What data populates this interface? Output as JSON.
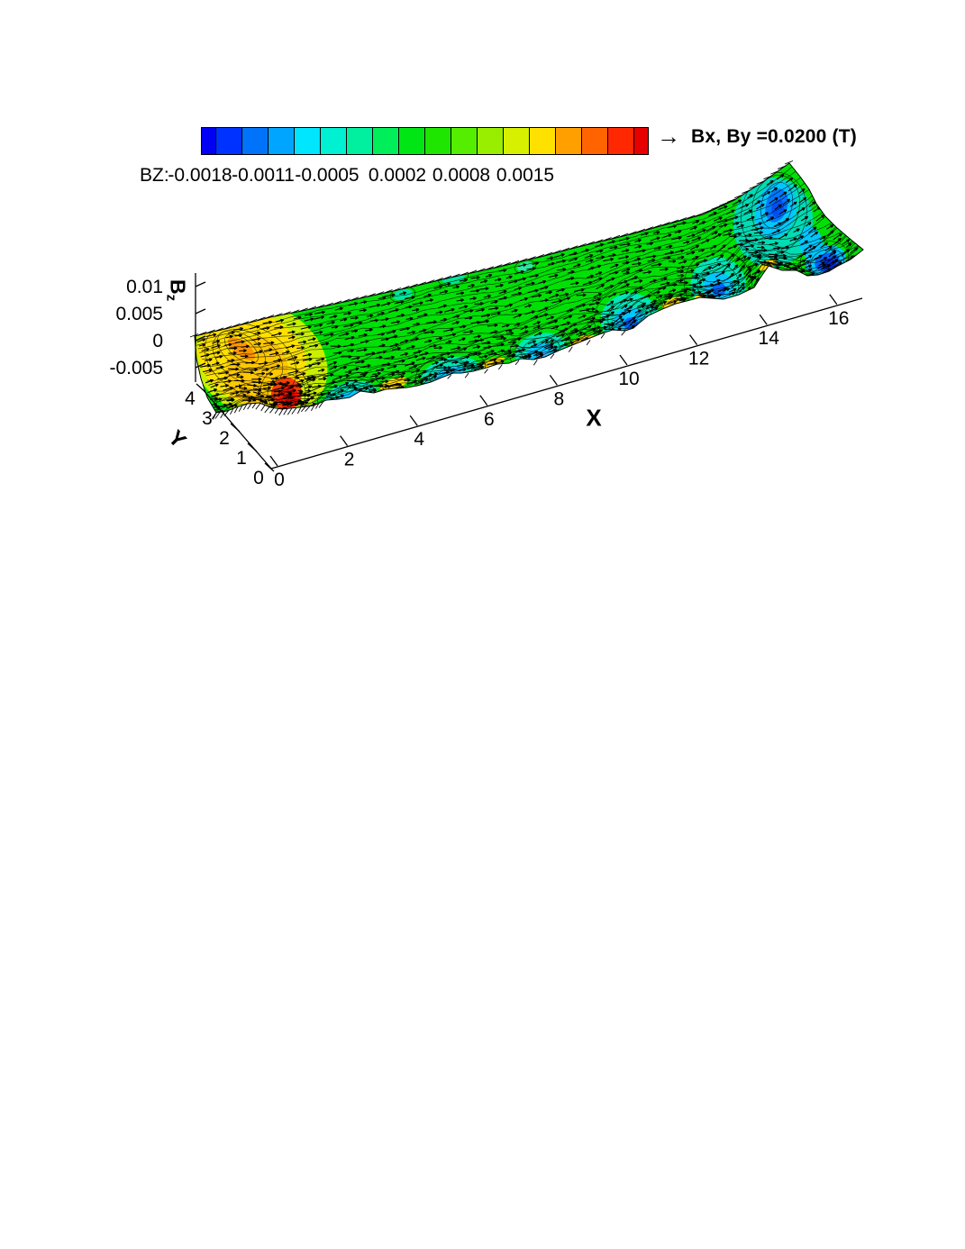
{
  "chart_data": {
    "type": "surface",
    "projection": "3d-contour-surface-with-vector-field",
    "title": "",
    "x_axis": {
      "label": "X",
      "ticks": [
        "0",
        "2",
        "4",
        "6",
        "8",
        "10",
        "12",
        "14",
        "16"
      ],
      "range": [
        0,
        17
      ]
    },
    "y_axis": {
      "label": "Y",
      "ticks": [
        "0",
        "1",
        "2",
        "3",
        "4"
      ],
      "range": [
        0,
        4.5
      ]
    },
    "z_axis": {
      "label": "Bz",
      "label_main": "B",
      "label_sub": "z",
      "ticks": [
        "0.01",
        "0.005",
        "0",
        "-0.005"
      ],
      "range": [
        -0.005,
        0.01
      ]
    },
    "colorbar": {
      "label": "BZ:",
      "ticks": [
        "-0.0018",
        "-0.0011",
        "-0.0005",
        "0.0002",
        "0.0008",
        "0.0015"
      ],
      "colors": [
        "#0000F5",
        "#0032FF",
        "#0073FA",
        "#00A5FF",
        "#00E6FF",
        "#00F0D2",
        "#00F0A0",
        "#00EE5A",
        "#00E614",
        "#1EE600",
        "#55EE00",
        "#99EE00",
        "#D6F000",
        "#FFE100",
        "#FFA000",
        "#FF6400",
        "#FF2800",
        "#E60000"
      ]
    },
    "vector_field": {
      "arrow": "→",
      "label": "Bx, By =0.0200 (T)"
    },
    "surface_colors": {
      "base_green": "#00E005",
      "contour_line": "#000000"
    },
    "features": [
      {
        "name": "positive-peak",
        "location_x": "≈ 1 (front edge)",
        "bz": "≈ +0.0018 (red)"
      },
      {
        "name": "secondary-positive-ridge",
        "location_x": "≈ 0.5–1.5",
        "bz": "≈ +0.0008–0.0015 (yellow/orange)"
      },
      {
        "name": "negative-wells",
        "location_x": "≈ 14–16",
        "bz": "≈ −0.0018 (blue)"
      },
      {
        "name": "periodic-front-edge-undulation",
        "period_x": "≈ 2"
      },
      {
        "name": "background-level",
        "bz": "≈ 0 (green)"
      }
    ]
  }
}
